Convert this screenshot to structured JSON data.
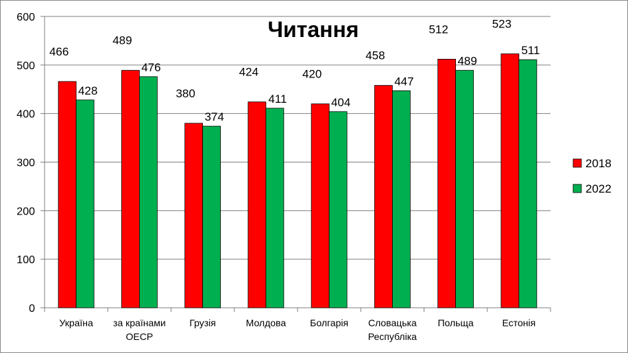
{
  "chart_data": {
    "type": "bar",
    "title": "Читання",
    "categories": [
      [
        "Україна"
      ],
      [
        "за країнами",
        "ОЕСР"
      ],
      [
        "Грузія"
      ],
      [
        "Молдова"
      ],
      [
        "Болгарія"
      ],
      [
        "Словацька",
        "Республіка"
      ],
      [
        "Польща"
      ],
      [
        "Естонія"
      ]
    ],
    "series": [
      {
        "name": "2018",
        "color": "#ff0000",
        "values": [
          466,
          489,
          380,
          424,
          420,
          458,
          512,
          523
        ]
      },
      {
        "name": "2022",
        "color": "#00b050",
        "values": [
          428,
          476,
          374,
          411,
          404,
          447,
          489,
          511
        ]
      }
    ],
    "ylim": [
      0,
      600
    ],
    "yticks": [
      0,
      100,
      200,
      300,
      400,
      500,
      600
    ],
    "grid": true,
    "legend_position": "right"
  }
}
